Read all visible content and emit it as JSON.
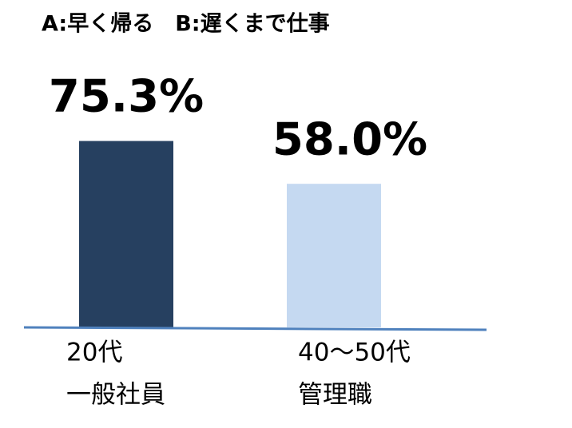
{
  "chart_data": {
    "type": "bar",
    "title": "A:早く帰る　B:遅くまで仕事",
    "categories": [
      [
        "20代",
        "一般社員"
      ],
      [
        "40～50代",
        "管理職"
      ]
    ],
    "values": [
      75.3,
      58.0
    ],
    "value_labels": [
      "75.3%",
      "58.0%"
    ],
    "colors": [
      "#264060",
      "#c5d9f1"
    ],
    "baseline_color": "#4f81bd"
  }
}
